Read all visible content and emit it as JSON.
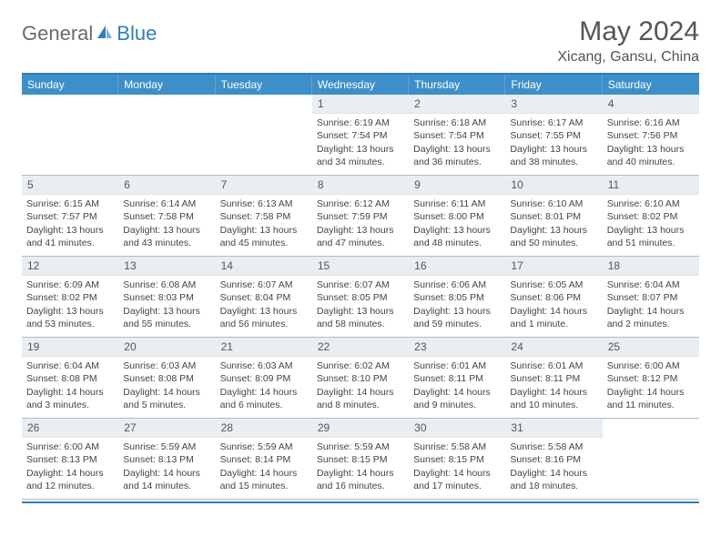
{
  "logo": {
    "general": "General",
    "blue": "Blue"
  },
  "title": "May 2024",
  "location": "Xicang, Gansu, China",
  "colors": {
    "header_bg": "#3e8fc9",
    "accent": "#2f7fb8",
    "daynum_bg": "#e9eef2",
    "text": "#444444",
    "title_text": "#555555"
  },
  "weekdays": [
    "Sunday",
    "Monday",
    "Tuesday",
    "Wednesday",
    "Thursday",
    "Friday",
    "Saturday"
  ],
  "weeks": [
    [
      null,
      null,
      null,
      {
        "n": "1",
        "sr": "Sunrise: 6:19 AM",
        "ss": "Sunset: 7:54 PM",
        "d1": "Daylight: 13 hours",
        "d2": "and 34 minutes."
      },
      {
        "n": "2",
        "sr": "Sunrise: 6:18 AM",
        "ss": "Sunset: 7:54 PM",
        "d1": "Daylight: 13 hours",
        "d2": "and 36 minutes."
      },
      {
        "n": "3",
        "sr": "Sunrise: 6:17 AM",
        "ss": "Sunset: 7:55 PM",
        "d1": "Daylight: 13 hours",
        "d2": "and 38 minutes."
      },
      {
        "n": "4",
        "sr": "Sunrise: 6:16 AM",
        "ss": "Sunset: 7:56 PM",
        "d1": "Daylight: 13 hours",
        "d2": "and 40 minutes."
      }
    ],
    [
      {
        "n": "5",
        "sr": "Sunrise: 6:15 AM",
        "ss": "Sunset: 7:57 PM",
        "d1": "Daylight: 13 hours",
        "d2": "and 41 minutes."
      },
      {
        "n": "6",
        "sr": "Sunrise: 6:14 AM",
        "ss": "Sunset: 7:58 PM",
        "d1": "Daylight: 13 hours",
        "d2": "and 43 minutes."
      },
      {
        "n": "7",
        "sr": "Sunrise: 6:13 AM",
        "ss": "Sunset: 7:58 PM",
        "d1": "Daylight: 13 hours",
        "d2": "and 45 minutes."
      },
      {
        "n": "8",
        "sr": "Sunrise: 6:12 AM",
        "ss": "Sunset: 7:59 PM",
        "d1": "Daylight: 13 hours",
        "d2": "and 47 minutes."
      },
      {
        "n": "9",
        "sr": "Sunrise: 6:11 AM",
        "ss": "Sunset: 8:00 PM",
        "d1": "Daylight: 13 hours",
        "d2": "and 48 minutes."
      },
      {
        "n": "10",
        "sr": "Sunrise: 6:10 AM",
        "ss": "Sunset: 8:01 PM",
        "d1": "Daylight: 13 hours",
        "d2": "and 50 minutes."
      },
      {
        "n": "11",
        "sr": "Sunrise: 6:10 AM",
        "ss": "Sunset: 8:02 PM",
        "d1": "Daylight: 13 hours",
        "d2": "and 51 minutes."
      }
    ],
    [
      {
        "n": "12",
        "sr": "Sunrise: 6:09 AM",
        "ss": "Sunset: 8:02 PM",
        "d1": "Daylight: 13 hours",
        "d2": "and 53 minutes."
      },
      {
        "n": "13",
        "sr": "Sunrise: 6:08 AM",
        "ss": "Sunset: 8:03 PM",
        "d1": "Daylight: 13 hours",
        "d2": "and 55 minutes."
      },
      {
        "n": "14",
        "sr": "Sunrise: 6:07 AM",
        "ss": "Sunset: 8:04 PM",
        "d1": "Daylight: 13 hours",
        "d2": "and 56 minutes."
      },
      {
        "n": "15",
        "sr": "Sunrise: 6:07 AM",
        "ss": "Sunset: 8:05 PM",
        "d1": "Daylight: 13 hours",
        "d2": "and 58 minutes."
      },
      {
        "n": "16",
        "sr": "Sunrise: 6:06 AM",
        "ss": "Sunset: 8:05 PM",
        "d1": "Daylight: 13 hours",
        "d2": "and 59 minutes."
      },
      {
        "n": "17",
        "sr": "Sunrise: 6:05 AM",
        "ss": "Sunset: 8:06 PM",
        "d1": "Daylight: 14 hours",
        "d2": "and 1 minute."
      },
      {
        "n": "18",
        "sr": "Sunrise: 6:04 AM",
        "ss": "Sunset: 8:07 PM",
        "d1": "Daylight: 14 hours",
        "d2": "and 2 minutes."
      }
    ],
    [
      {
        "n": "19",
        "sr": "Sunrise: 6:04 AM",
        "ss": "Sunset: 8:08 PM",
        "d1": "Daylight: 14 hours",
        "d2": "and 3 minutes."
      },
      {
        "n": "20",
        "sr": "Sunrise: 6:03 AM",
        "ss": "Sunset: 8:08 PM",
        "d1": "Daylight: 14 hours",
        "d2": "and 5 minutes."
      },
      {
        "n": "21",
        "sr": "Sunrise: 6:03 AM",
        "ss": "Sunset: 8:09 PM",
        "d1": "Daylight: 14 hours",
        "d2": "and 6 minutes."
      },
      {
        "n": "22",
        "sr": "Sunrise: 6:02 AM",
        "ss": "Sunset: 8:10 PM",
        "d1": "Daylight: 14 hours",
        "d2": "and 8 minutes."
      },
      {
        "n": "23",
        "sr": "Sunrise: 6:01 AM",
        "ss": "Sunset: 8:11 PM",
        "d1": "Daylight: 14 hours",
        "d2": "and 9 minutes."
      },
      {
        "n": "24",
        "sr": "Sunrise: 6:01 AM",
        "ss": "Sunset: 8:11 PM",
        "d1": "Daylight: 14 hours",
        "d2": "and 10 minutes."
      },
      {
        "n": "25",
        "sr": "Sunrise: 6:00 AM",
        "ss": "Sunset: 8:12 PM",
        "d1": "Daylight: 14 hours",
        "d2": "and 11 minutes."
      }
    ],
    [
      {
        "n": "26",
        "sr": "Sunrise: 6:00 AM",
        "ss": "Sunset: 8:13 PM",
        "d1": "Daylight: 14 hours",
        "d2": "and 12 minutes."
      },
      {
        "n": "27",
        "sr": "Sunrise: 5:59 AM",
        "ss": "Sunset: 8:13 PM",
        "d1": "Daylight: 14 hours",
        "d2": "and 14 minutes."
      },
      {
        "n": "28",
        "sr": "Sunrise: 5:59 AM",
        "ss": "Sunset: 8:14 PM",
        "d1": "Daylight: 14 hours",
        "d2": "and 15 minutes."
      },
      {
        "n": "29",
        "sr": "Sunrise: 5:59 AM",
        "ss": "Sunset: 8:15 PM",
        "d1": "Daylight: 14 hours",
        "d2": "and 16 minutes."
      },
      {
        "n": "30",
        "sr": "Sunrise: 5:58 AM",
        "ss": "Sunset: 8:15 PM",
        "d1": "Daylight: 14 hours",
        "d2": "and 17 minutes."
      },
      {
        "n": "31",
        "sr": "Sunrise: 5:58 AM",
        "ss": "Sunset: 8:16 PM",
        "d1": "Daylight: 14 hours",
        "d2": "and 18 minutes."
      },
      null
    ]
  ]
}
